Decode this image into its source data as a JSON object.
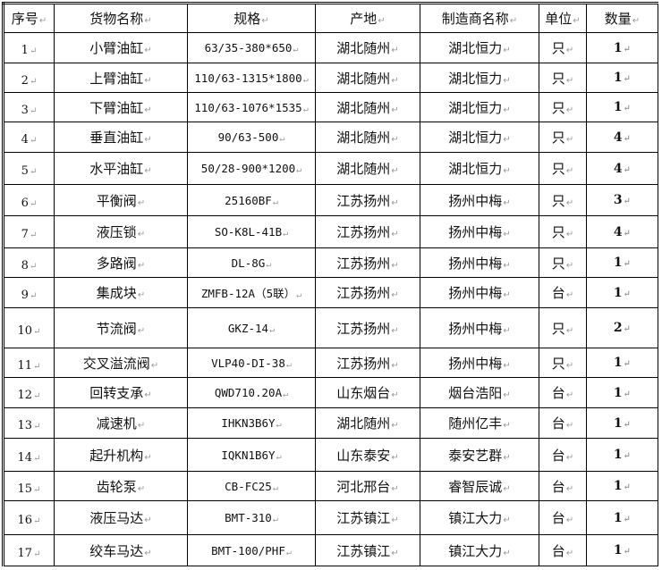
{
  "headers": [
    "序号",
    "货物名称",
    "规格",
    "产地",
    "制造商名称",
    "单位",
    "数量"
  ],
  "rows": [
    [
      "1",
      "小臂油缸",
      "63/35-380*650",
      "湖北随州",
      "湖北恒力",
      "只",
      "1"
    ],
    [
      "2",
      "上臂油缸",
      "110/63-1315*1800",
      "湖北随州",
      "湖北恒力",
      "只",
      "1"
    ],
    [
      "3",
      "下臂油缸",
      "110/63-1076*1535",
      "湖北随州",
      "湖北恒力",
      "只",
      "1"
    ],
    [
      "4",
      "垂直油缸",
      "90/63-500",
      "湖北随州",
      "湖北恒力",
      "只",
      "4"
    ],
    [
      "5",
      "水平油缸",
      "50/28-900*1200",
      "湖北随州",
      "湖北恒力",
      "只",
      "4"
    ],
    [
      "6",
      "平衡阀",
      "25160BF",
      "江苏扬州",
      "扬州中梅",
      "只",
      "3"
    ],
    [
      "7",
      "液压锁",
      "SO-K8L-41B",
      "江苏扬州",
      "扬州中梅",
      "只",
      "4"
    ],
    [
      "8",
      "多路阀",
      "DL-8G",
      "江苏扬州",
      "扬州中梅",
      "只",
      "1"
    ],
    [
      "9",
      "集成块",
      "ZMFB-12A（5联）",
      "江苏扬州",
      "扬州中梅",
      "台",
      "1"
    ],
    [
      "10",
      "节流阀",
      "GKZ-14",
      "江苏扬州",
      "扬州中梅",
      "只",
      "2"
    ],
    [
      "11",
      "交叉溢流阀",
      "VLP40-DI-38",
      "江苏扬州",
      "扬州中梅",
      "只",
      "1"
    ],
    [
      "12",
      "回转支承",
      "QWD710.20A",
      "山东烟台",
      "烟台浩阳",
      "台",
      "1"
    ],
    [
      "13",
      "减速机",
      "IHKN3B6Y",
      "湖北随州",
      "随州亿丰",
      "台",
      "1"
    ],
    [
      "14",
      "起升机构",
      "IQKN1B6Y",
      "山东泰安",
      "泰安艺群",
      "台",
      "1"
    ],
    [
      "15",
      "齿轮泵",
      "CB-FC25",
      "河北邢台",
      "睿智辰诚",
      "台",
      "1"
    ],
    [
      "16",
      "液压马达",
      "BMT-310",
      "江苏镇江",
      "镇江大力",
      "台",
      "1"
    ],
    [
      "17",
      "绞车马达",
      "BMT-100/PHF",
      "江苏镇江",
      "镇江大力",
      "台",
      "1"
    ]
  ]
}
